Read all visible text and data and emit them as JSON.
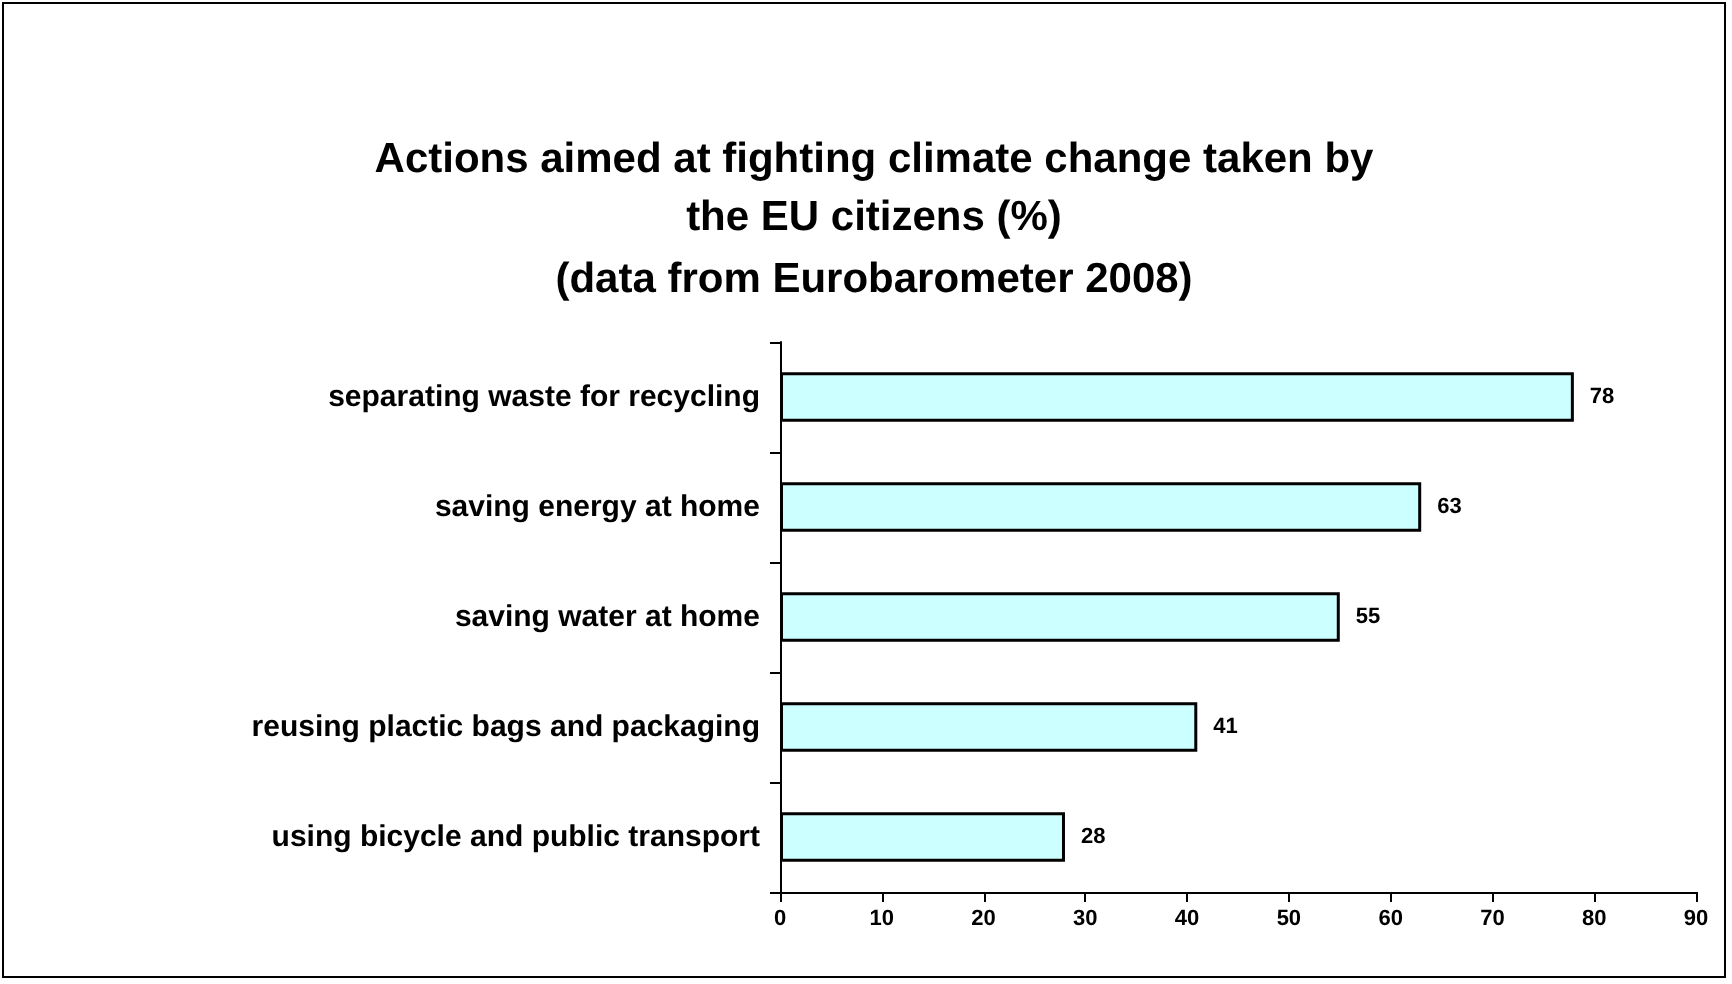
{
  "chart_data": {
    "type": "bar",
    "title": "Actions aimed at fighting climate change taken by\nthe EU citizens (%)",
    "subtitle": "(data from Eurobarometer 2008)",
    "orientation": "horizontal",
    "categories": [
      "separating waste for recycling",
      "saving energy at home",
      "saving water at home",
      "reusing plactic bags and packaging",
      "using bicycle and public transport"
    ],
    "values": [
      78,
      63,
      55,
      41,
      28
    ],
    "color": "#ccffff",
    "xlim": [
      0,
      90
    ],
    "xticks": [
      0,
      10,
      20,
      30,
      40,
      50,
      60,
      70,
      80,
      90
    ],
    "grid": false,
    "data_labels": true
  }
}
